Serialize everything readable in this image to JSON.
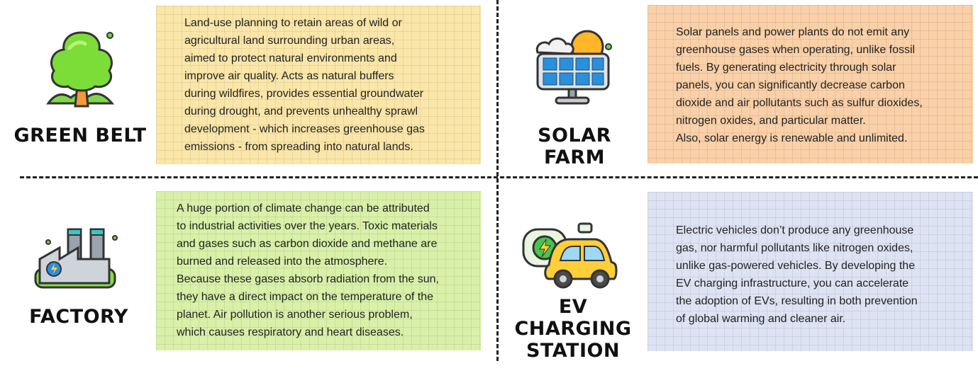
{
  "sections": {
    "green_belt": {
      "title": "GREEN BELT",
      "text": "Land-use planning to retain areas of wild or\nagricultural land surrounding urban areas,\naimed to protect natural environments and\nimprove air quality. Acts as natural buffers\nduring wildfires, provides essential groundwater\nduring drought, and prevents unhealthy sprawl\ndevelopment - which increases greenhouse gas\nemissions - from spreading into natural lands.",
      "icon": "tree-icon",
      "card_color": "#fae6a8"
    },
    "solar_farm": {
      "title": "SOLAR FARM",
      "text": "Solar panels and power plants do not emit any\ngreenhouse gases when operating, unlike fossil\nfuels. By generating electricity through solar\npanels, you can significantly decrease carbon\ndioxide and air pollutants such as sulfur dioxides,\nnitrogen oxides, and particular matter.\nAlso, solar energy is renewable and unlimited.",
      "icon": "solar-panel-icon",
      "card_color": "#f9d0a8"
    },
    "factory": {
      "title": "FACTORY",
      "text": "A huge portion of climate change can be attributed\nto industrial activities over the years. Toxic materials\nand gases such as carbon dioxide and methane are\nburned and released into the atmosphere.\nBecause these gases absorb radiation from the sun,\nthey have a direct impact on the temperature of the\nplanet. Air pollution is another serious problem,\nwhich causes respiratory and heart diseases.",
      "icon": "factory-icon",
      "card_color": "#d8f0a8"
    },
    "ev_station": {
      "title_line1": "EV CHARGING",
      "title_line2": "STATION",
      "text": "Electric vehicles don’t produce any greenhouse\ngas, nor harmful pollutants like nitrogen oxides,\nunlike gas-powered vehicles. By developing the\nEV charging infrastructure, you can accelerate\nthe adoption of EVs, resulting in both prevention\nof global warming and cleaner air.",
      "icon": "electric-car-icon",
      "card_color": "#dde3f3"
    }
  }
}
